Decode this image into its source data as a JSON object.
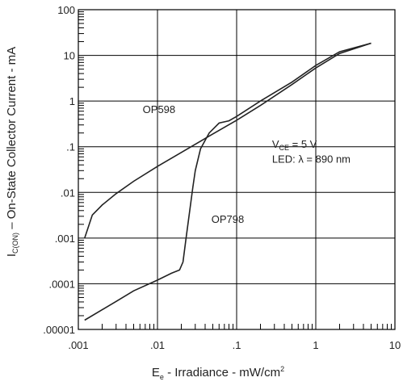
{
  "chart_data": {
    "type": "line",
    "xscale": "log",
    "yscale": "log",
    "xlim": [
      0.001,
      10
    ],
    "ylim": [
      1e-05,
      100
    ],
    "grid": true,
    "xlabel": {
      "main": "E",
      "sub": "e",
      "rest": " - Irradiance - mW/cm",
      "sup": "2"
    },
    "ylabel": {
      "pre": "I",
      "sub": "C(ON)",
      "rest": " – On-State Collector Current - mA"
    },
    "x_ticks": [
      {
        "value": 0.001,
        "label": ".001"
      },
      {
        "value": 0.01,
        "label": ".01"
      },
      {
        "value": 0.1,
        "label": ".1"
      },
      {
        "value": 1,
        "label": "1"
      },
      {
        "value": 10,
        "label": "10"
      }
    ],
    "y_ticks": [
      {
        "value": 1e-05,
        "label": ".00001"
      },
      {
        "value": 0.0001,
        "label": ".0001"
      },
      {
        "value": 0.001,
        "label": ".001"
      },
      {
        "value": 0.01,
        "label": ".01"
      },
      {
        "value": 0.1,
        "label": ".1"
      },
      {
        "value": 1,
        "label": "1"
      },
      {
        "value": 10,
        "label": "10"
      },
      {
        "value": 100,
        "label": "100"
      }
    ],
    "annotations": {
      "condition_1": {
        "pre": "V",
        "sub": "CE",
        "rest": " = 5 V",
        "x": 0.28,
        "y": 0.095
      },
      "condition_2": {
        "text": "LED: λ = 890 nm",
        "x": 0.28,
        "y": 0.045
      }
    },
    "series": [
      {
        "name": "OP598",
        "label_at": {
          "x": 0.0065,
          "y": 0.55
        },
        "x": [
          0.0012,
          0.0015,
          0.002,
          0.003,
          0.005,
          0.01,
          0.02,
          0.05,
          0.1,
          0.2,
          0.5,
          1,
          2,
          5
        ],
        "y": [
          0.001,
          0.0032,
          0.0053,
          0.0094,
          0.0175,
          0.037,
          0.075,
          0.19,
          0.38,
          0.8,
          2.3,
          5.3,
          11,
          18.5
        ]
      },
      {
        "name": "OP798",
        "label_at": {
          "x": 0.048,
          "y": 0.00215
        },
        "x": [
          0.0012,
          0.002,
          0.003,
          0.005,
          0.01,
          0.015,
          0.019,
          0.021,
          0.023,
          0.025,
          0.028,
          0.03,
          0.035,
          0.045,
          0.06,
          0.08,
          0.1,
          0.2,
          0.5,
          1,
          2,
          5
        ],
        "y": [
          1.6e-05,
          2.7e-05,
          4.1e-05,
          7e-05,
          0.00012,
          0.00017,
          0.0002,
          0.0003,
          0.001,
          0.003,
          0.013,
          0.03,
          0.09,
          0.2,
          0.33,
          0.37,
          0.46,
          1.0,
          2.6,
          6.0,
          12,
          18.5
        ]
      }
    ]
  }
}
